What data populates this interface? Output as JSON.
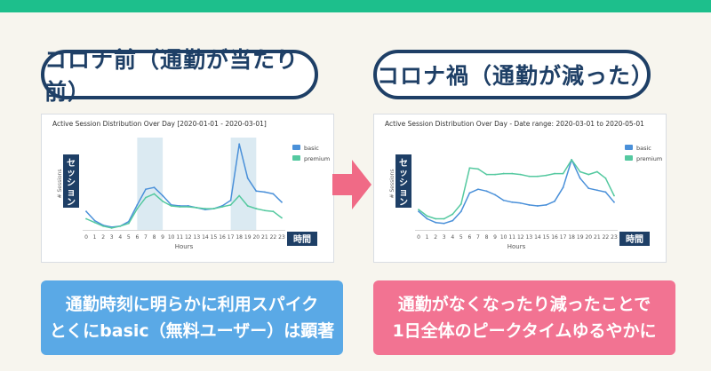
{
  "header": {
    "left_title": "コロナ前（通勤が当たり前）",
    "right_title": "コロナ禍（通勤が減った）"
  },
  "colors": {
    "basic": "#4a90d9",
    "premium": "#55c9a0",
    "band": "#cfe3ee",
    "ylabel_box": "#1e3f66",
    "arrow": "#f06a86",
    "topbar": "#1dbf8c"
  },
  "overlay": {
    "session_label": "セッション",
    "time_label": "時間"
  },
  "chart_data": [
    {
      "type": "line",
      "title": "Active Session Distribution Over Day [2020-01-01 - 2020-03-01]",
      "xlabel": "Hours",
      "ylabel": "# Sessions",
      "x": [
        0,
        1,
        2,
        3,
        4,
        5,
        6,
        7,
        8,
        9,
        10,
        11,
        12,
        13,
        14,
        15,
        16,
        17,
        18,
        19,
        20,
        21,
        22,
        23
      ],
      "ylim": [
        0,
        100
      ],
      "highlight_hours": [
        [
          6,
          9
        ],
        [
          17,
          20
        ]
      ],
      "legend": "top-right",
      "series": [
        {
          "name": "basic",
          "values": [
            20,
            10,
            5,
            3,
            4,
            9,
            27,
            44,
            46,
            37,
            27,
            26,
            26,
            24,
            22,
            23,
            26,
            32,
            93,
            56,
            42,
            41,
            39,
            30
          ]
        },
        {
          "name": "premium",
          "values": [
            12,
            8,
            4,
            2,
            4,
            7,
            23,
            35,
            39,
            31,
            26,
            25,
            25,
            24,
            23,
            23,
            25,
            27,
            37,
            26,
            23,
            21,
            20,
            13
          ]
        }
      ]
    },
    {
      "type": "line",
      "title": "Active Session Distribution Over Day - Date range: 2020-03-01 to 2020-05-01",
      "xlabel": "Hours",
      "ylabel": "# Sessions",
      "x": [
        0,
        1,
        2,
        3,
        4,
        5,
        6,
        7,
        8,
        9,
        10,
        11,
        12,
        13,
        14,
        15,
        16,
        17,
        18,
        19,
        20,
        21,
        22,
        23
      ],
      "ylim": [
        0,
        100
      ],
      "legend": "top-right",
      "series": [
        {
          "name": "basic",
          "values": [
            20,
            12,
            8,
            7,
            10,
            20,
            40,
            44,
            42,
            38,
            32,
            30,
            29,
            27,
            26,
            27,
            31,
            46,
            76,
            56,
            45,
            43,
            41,
            30
          ]
        },
        {
          "name": "premium",
          "values": [
            22,
            15,
            12,
            12,
            17,
            28,
            67,
            66,
            60,
            60,
            61,
            61,
            60,
            58,
            58,
            59,
            61,
            61,
            76,
            63,
            60,
            63,
            56,
            37
          ]
        }
      ]
    }
  ],
  "callouts": {
    "left_line1": "通勤時刻に明らかに利用スパイク",
    "left_line2": "とくにbasic（無料ユーザー）は顕著",
    "right_line1": "通勤がなくなったり減ったことで",
    "right_line2": "1日全体のピークタイムゆるやかに"
  }
}
